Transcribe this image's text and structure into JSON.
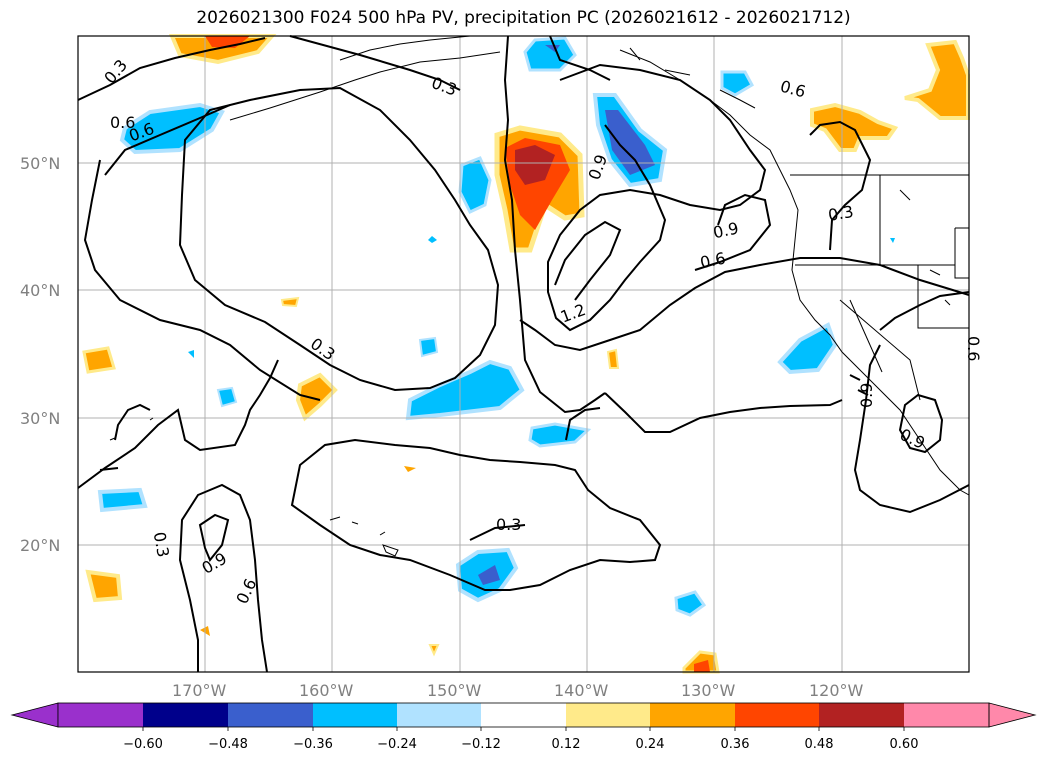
{
  "title": "2026021300 F024 500 hPa PV, precipitation PC (2026021612 - 2026021712)",
  "axes": {
    "lat_labels": [
      "50°N",
      "40°N",
      "30°N",
      "20°N"
    ],
    "lon_labels": [
      "170°W",
      "160°W",
      "150°W",
      "140°W",
      "130°W",
      "120°W"
    ]
  },
  "colorbar": {
    "ticks": [
      "−0.60",
      "−0.48",
      "−0.36",
      "−0.24",
      "−0.12",
      "0.12",
      "0.24",
      "0.36",
      "0.48",
      "0.60"
    ],
    "colors": [
      "#9a30cc",
      "#00008b",
      "#3a5fcd",
      "#00bfff",
      "#b0e2ff",
      "#ffffff",
      "#ffea8a",
      "#ffa500",
      "#ff4500",
      "#b22222",
      "#ff88aa"
    ]
  },
  "contour_labels": [
    "0.3",
    "0.6",
    "0.3",
    "0.9",
    "0.9",
    "0.6",
    "0.3",
    "1.2",
    "0.3",
    "0.6",
    "0.3",
    "0.9",
    "0.6",
    "0.9",
    "0.6",
    "0.9",
    "0.3",
    "0.6"
  ],
  "colors": {
    "grid": "#b0b0b0",
    "coast": "#000000",
    "contour": "#000000"
  }
}
